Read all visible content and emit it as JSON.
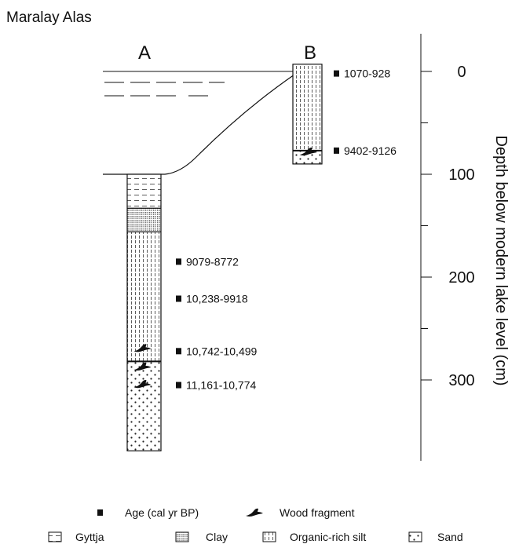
{
  "title": "Maralay Alas",
  "cores": [
    {
      "label": "A"
    },
    {
      "label": "B"
    }
  ],
  "axis": {
    "label": "Depth below modern lake level (cm)",
    "ticks": [
      {
        "value": 0,
        "text": "0"
      },
      {
        "value": 100,
        "text": "100"
      },
      {
        "value": 200,
        "text": "200"
      },
      {
        "value": 300,
        "text": "300"
      }
    ],
    "minor_ticks": [
      50,
      150,
      250
    ],
    "range": [
      -38,
      380
    ]
  },
  "layers": {
    "A": [
      {
        "type": "gyttja",
        "top": 100,
        "bottom": 133
      },
      {
        "type": "clay",
        "top": 133,
        "bottom": 156
      },
      {
        "type": "organic-silt",
        "top": 156,
        "bottom": 282
      },
      {
        "type": "sand",
        "top": 282,
        "bottom": 369
      }
    ],
    "B": [
      {
        "type": "organic-silt",
        "top": -7,
        "bottom": 77
      },
      {
        "type": "sand",
        "top": 77,
        "bottom": 90
      }
    ]
  },
  "wood_fragments": [
    {
      "core": "B",
      "depth": 78
    },
    {
      "core": "A",
      "depth": 269
    },
    {
      "core": "A",
      "depth": 287
    },
    {
      "core": "A",
      "depth": 304
    }
  ],
  "ages": [
    {
      "core": "B",
      "depth": 2,
      "text": "1070-928"
    },
    {
      "core": "B",
      "depth": 77,
      "text": "9402-9126"
    },
    {
      "core": "A",
      "depth": 185,
      "text": "9079-8772"
    },
    {
      "core": "A",
      "depth": 221,
      "text": "10,238-9918"
    },
    {
      "core": "A",
      "depth": 272,
      "text": "10,742-10,499"
    },
    {
      "core": "A",
      "depth": 305,
      "text": "11,161-10,774"
    }
  ],
  "legend": {
    "row1": [
      {
        "symbol": "age-square",
        "text": "Age (cal yr BP)"
      },
      {
        "symbol": "wood",
        "text": "Wood fragment"
      }
    ],
    "row2": [
      {
        "symbol": "gyttja",
        "text": "Gyttja"
      },
      {
        "symbol": "clay",
        "text": "Clay"
      },
      {
        "symbol": "organic-silt",
        "text": "Organic-rich silt"
      },
      {
        "symbol": "sand",
        "text": "Sand"
      }
    ]
  }
}
